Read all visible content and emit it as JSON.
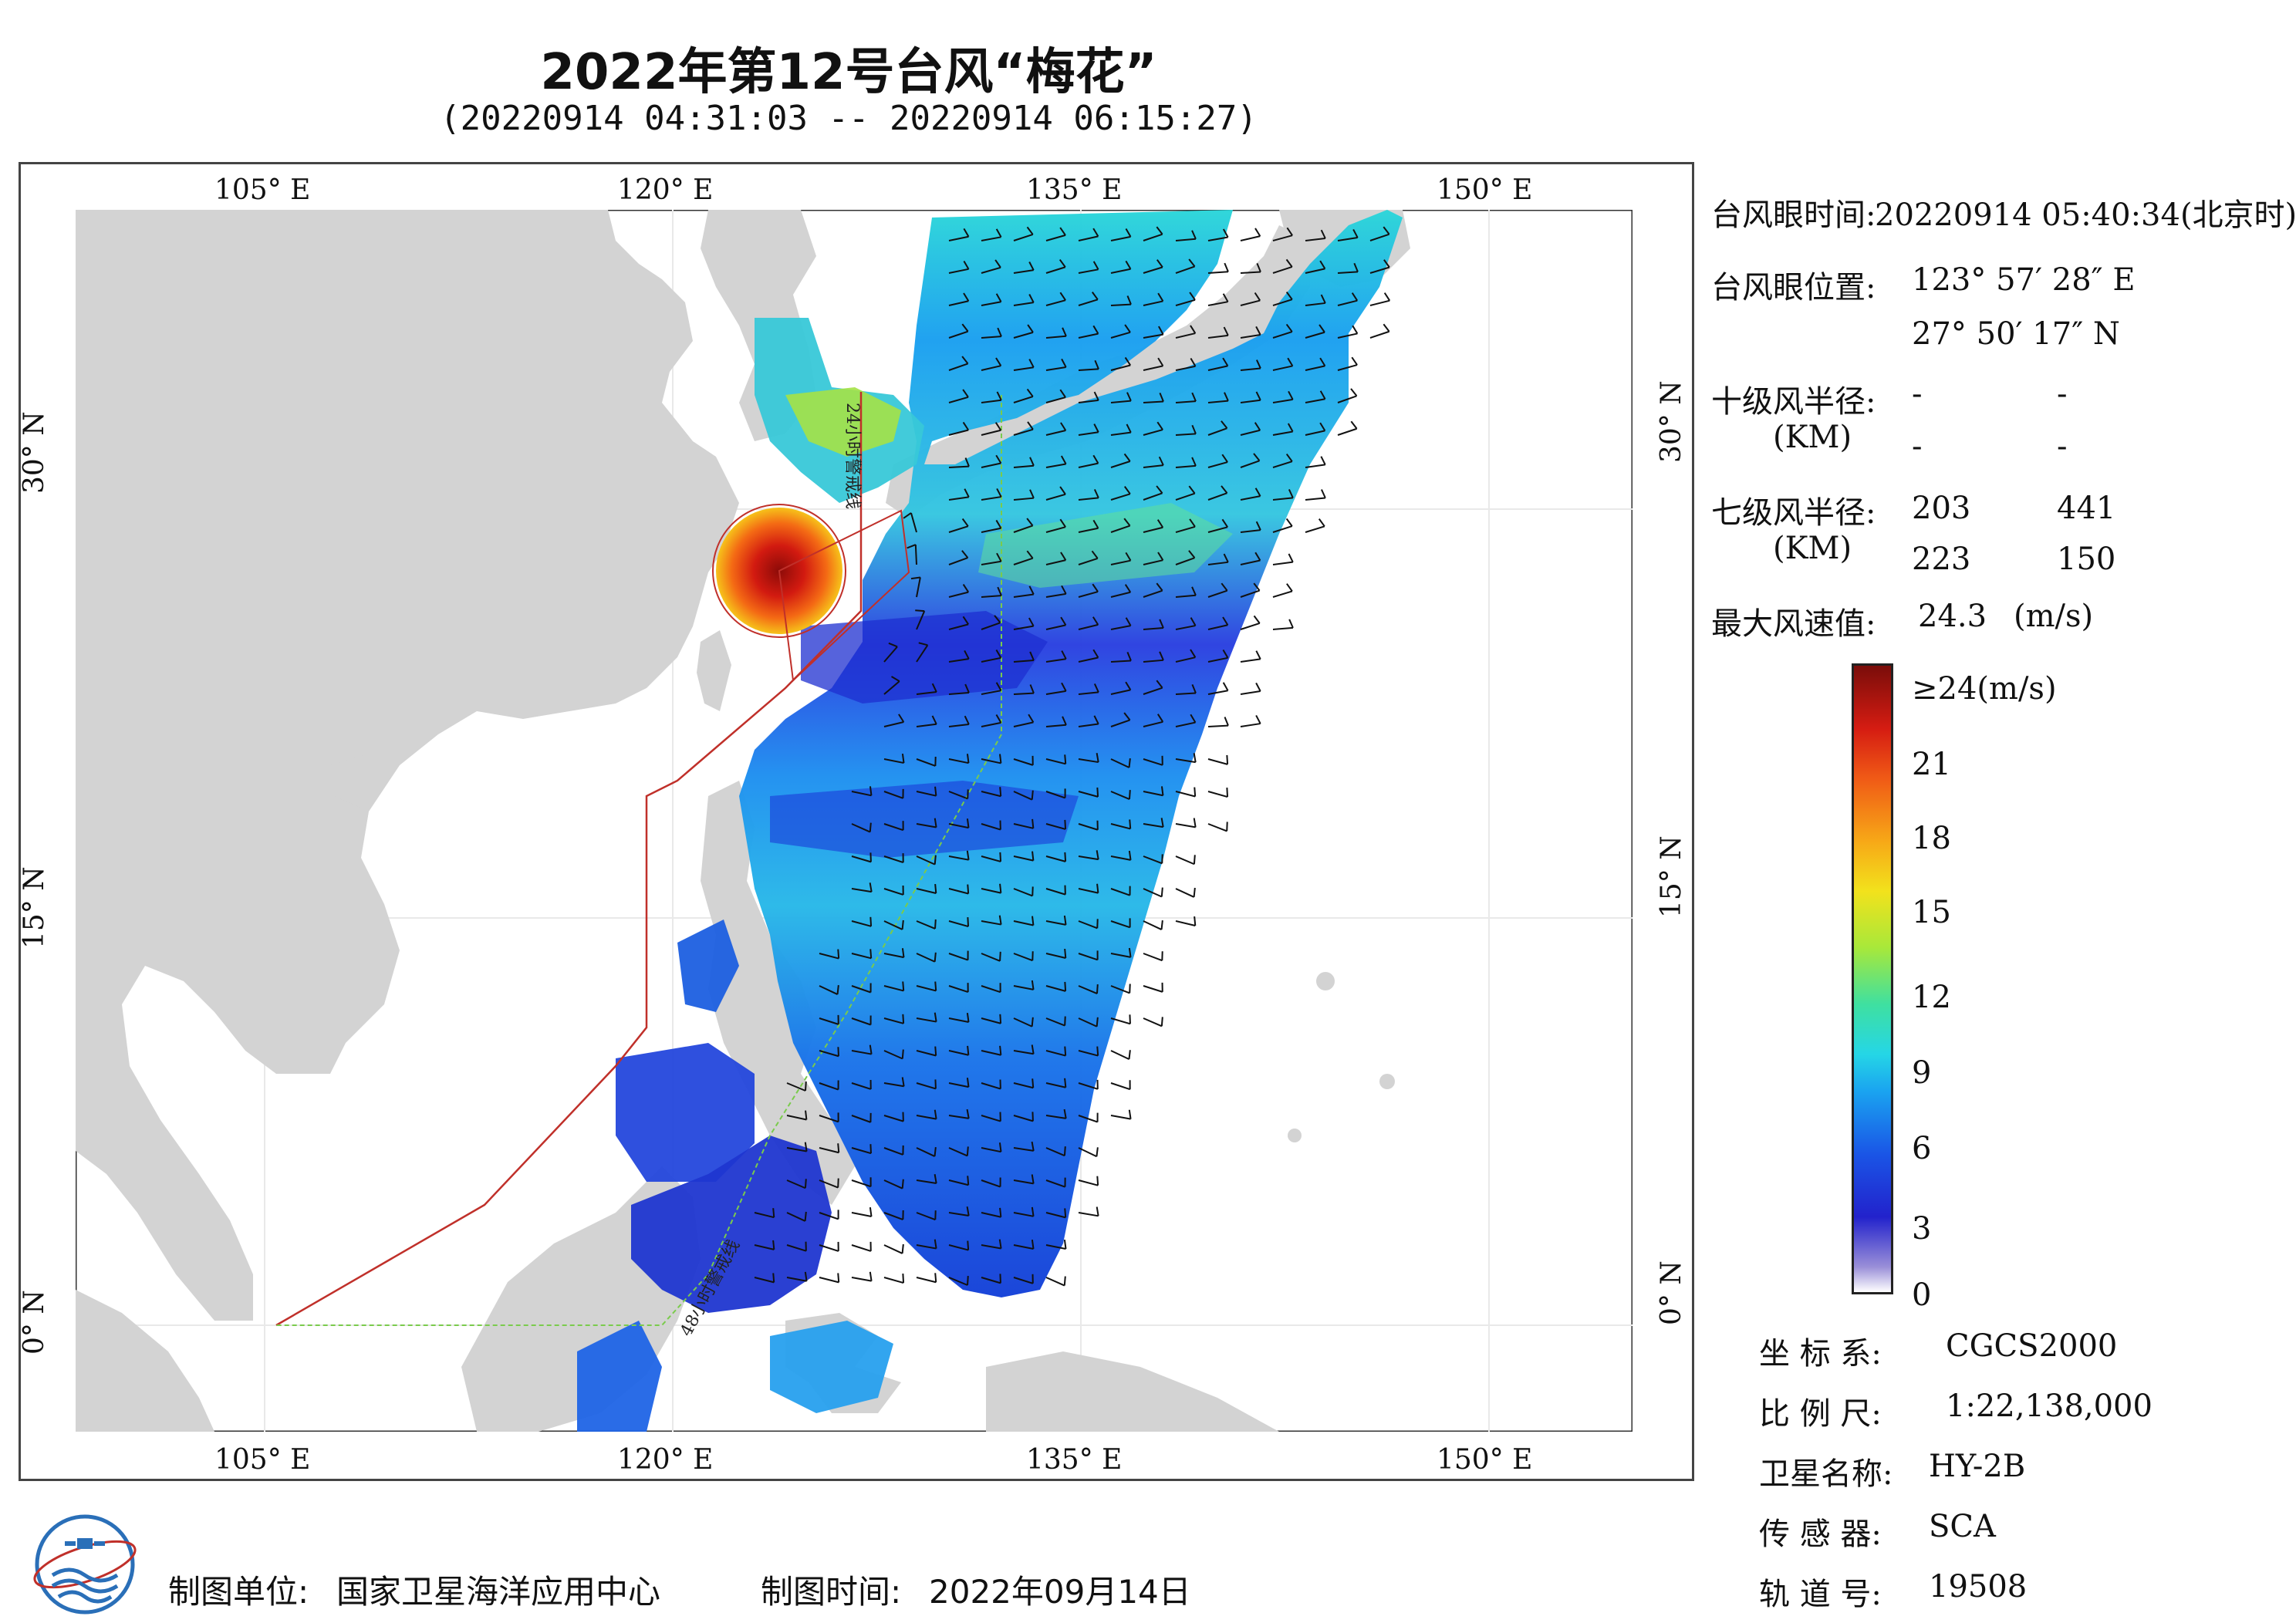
{
  "title": "2022年第12号台风“梅花”",
  "subtitle": "(20220914 04:31:03 -- 20220914 06:15:27)",
  "axis": {
    "top_lon": [
      "105° E",
      "120° E",
      "135° E",
      "150° E"
    ],
    "bottom_lon": [
      "105° E",
      "120° E",
      "135° E",
      "150° E"
    ],
    "left_lat": [
      "30° N",
      "15° N",
      "0° N"
    ],
    "right_lat": [
      "30° N",
      "15° N",
      "0° N"
    ]
  },
  "map_labels": {
    "warning_24h": "24小时警戒线",
    "warning_48h": "48小时警戒线"
  },
  "info": {
    "eye_time_label": "台风眼时间:",
    "eye_time_value": "20220914 05:40:34(北京时)",
    "eye_pos_label": "台风眼位置:",
    "eye_lon": "123° 57′ 28″ E",
    "eye_lat": "27° 50′ 17″ N",
    "r10_label": "十级风半径:",
    "r10_unit": "(KM)",
    "r10_values": [
      "-",
      "-",
      "-",
      "-"
    ],
    "r7_label": "七级风半径:",
    "r7_unit": "(KM)",
    "r7_values": [
      "203",
      "441",
      "223",
      "150"
    ],
    "max_wind_label": "最大风速值:",
    "max_wind_value": "24.3",
    "max_wind_unit": "(m/s)"
  },
  "colorbar": {
    "labels": [
      "≥24(m/s)",
      "21",
      "18",
      "15",
      "12",
      "9",
      "6",
      "3",
      "0"
    ]
  },
  "meta": {
    "crs_label": "坐 标 系:",
    "crs_value": "CGCS2000",
    "scale_label": "比 例 尺:",
    "scale_value": "1:22,138,000",
    "satellite_label": "卫星名称:",
    "satellite_value": "HY-2B",
    "sensor_label": "传 感 器:",
    "sensor_value": "SCA",
    "orbit_label": "轨 道 号:",
    "orbit_value": "19508"
  },
  "footer": {
    "unit_label": "制图单位:",
    "unit_value": "国家卫星海洋应用中心",
    "time_label": "制图时间:",
    "time_value": "2022年09月14日"
  },
  "colors": {
    "land": "#d3d3d3",
    "ocean": "#ffffff",
    "warning_line": "#c0302a",
    "guide_line": "#7acb4c"
  }
}
